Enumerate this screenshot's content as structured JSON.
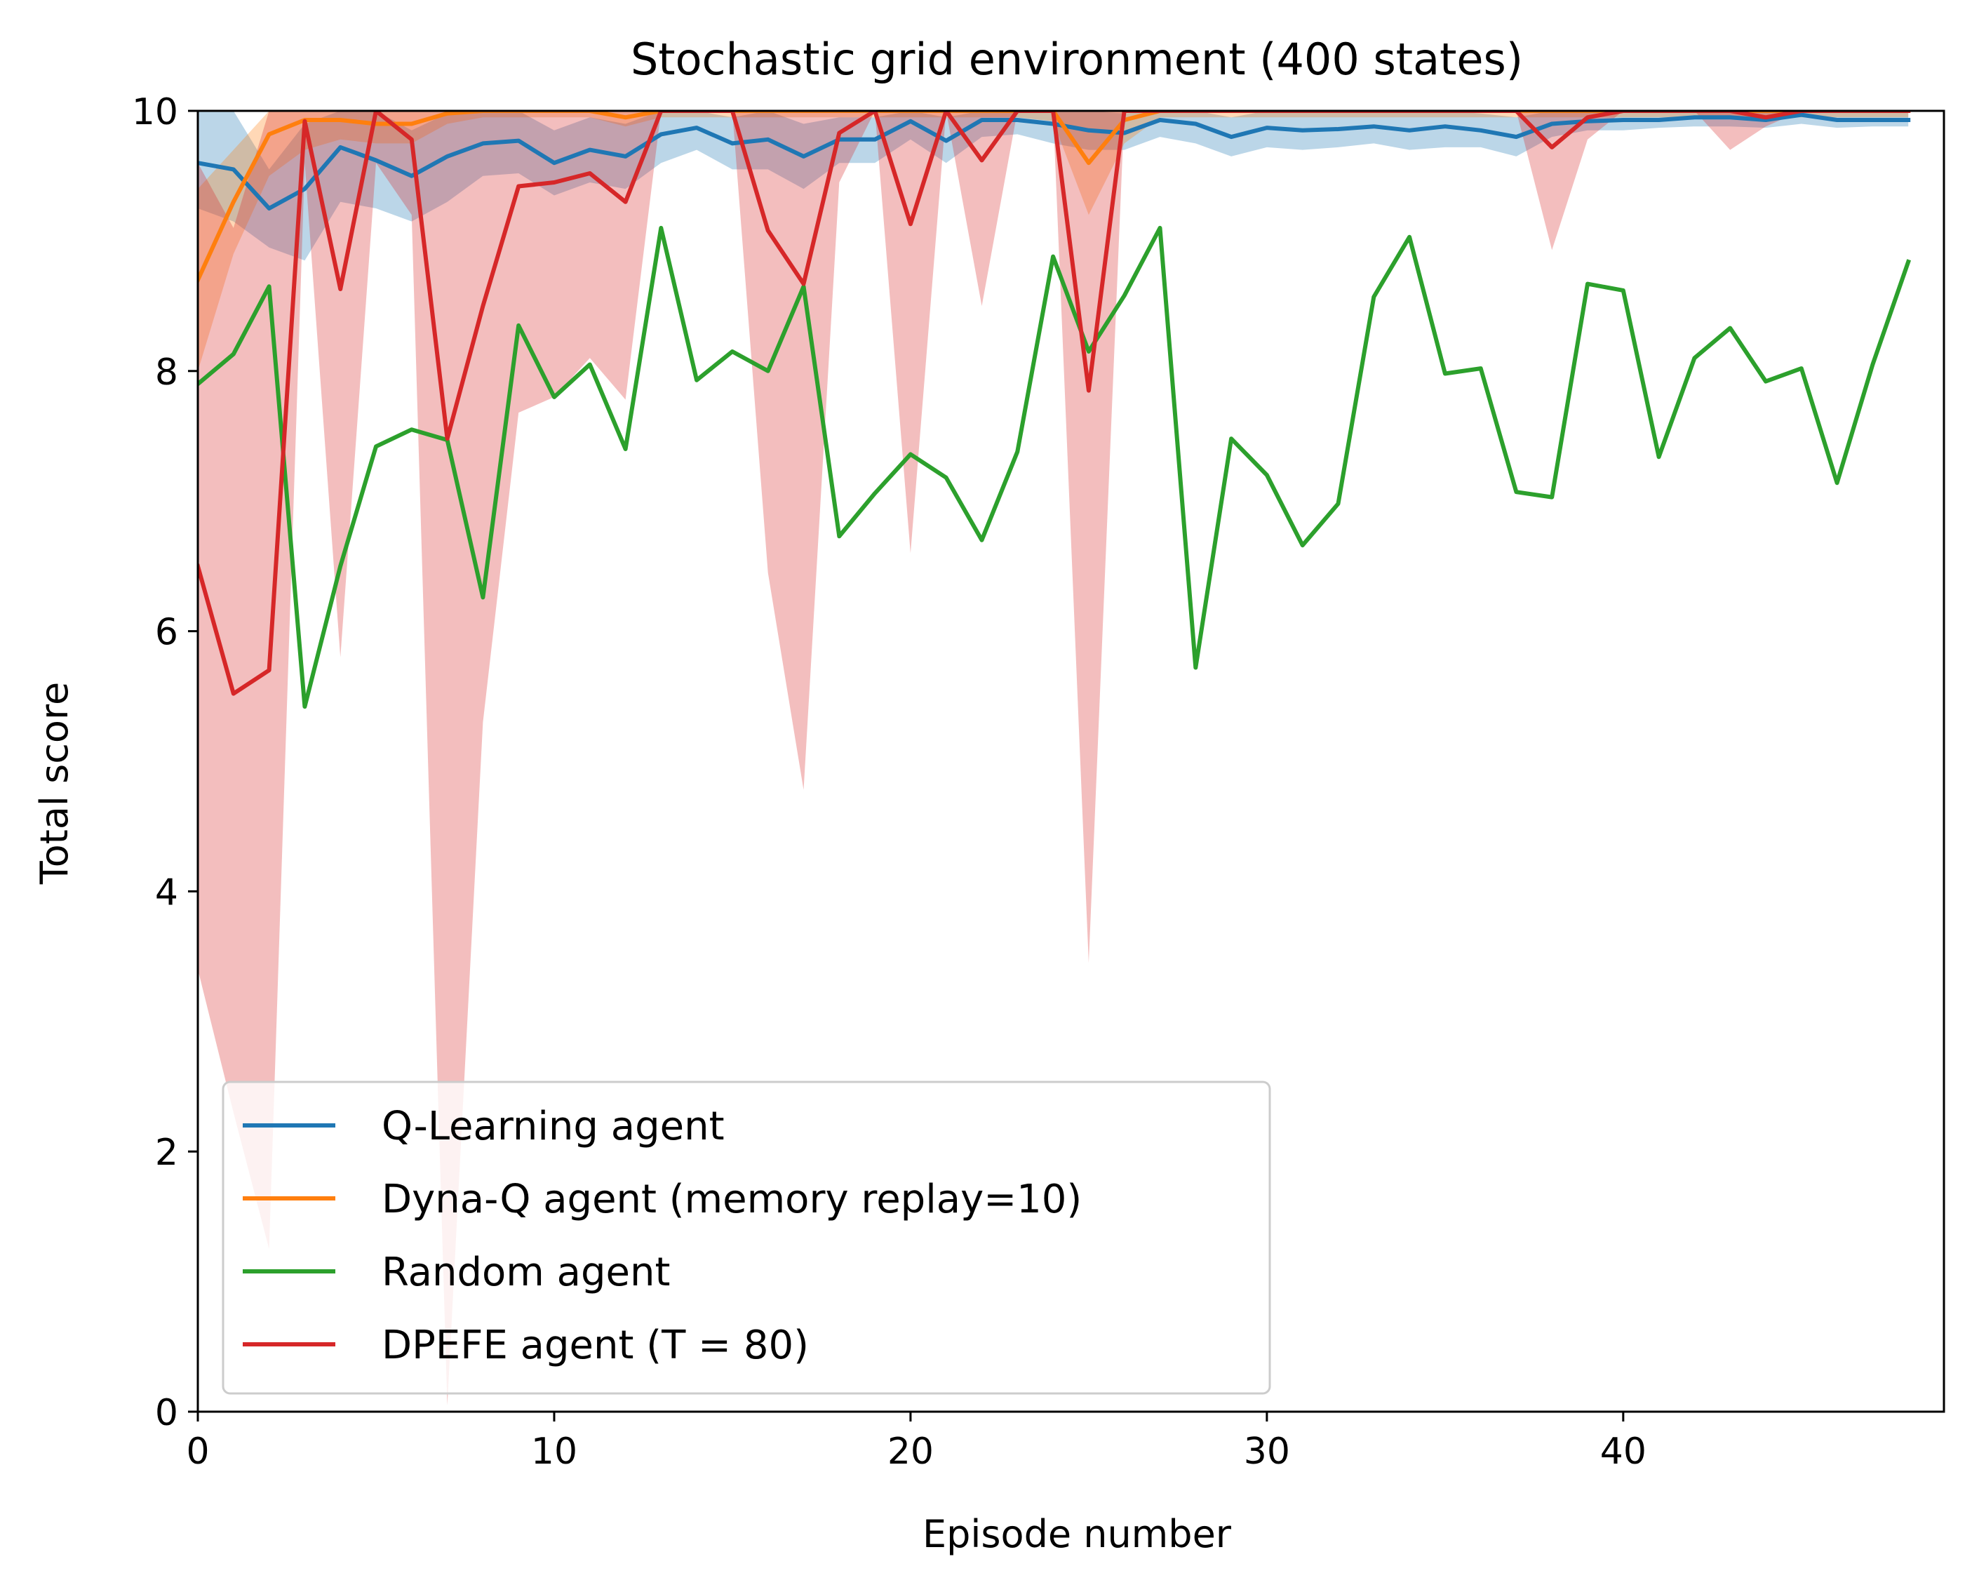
{
  "chart_data": {
    "type": "line",
    "title": "Stochastic grid environment (400 states)",
    "xlabel": "Episode number",
    "ylabel": "Total score",
    "xlim": [
      0,
      49
    ],
    "ylim": [
      0,
      10
    ],
    "xticks": [
      0,
      10,
      20,
      30,
      40
    ],
    "yticks": [
      0,
      2,
      4,
      6,
      8,
      10
    ],
    "grid": false,
    "legend_position": "bottom-left",
    "series": [
      {
        "name": "Q-Learning agent",
        "color": "#1f77b4",
        "values": [
          9.6,
          9.55,
          9.25,
          9.4,
          9.72,
          9.62,
          9.5,
          9.65,
          9.75,
          9.77,
          9.6,
          9.7,
          9.65,
          9.82,
          9.87,
          9.75,
          9.78,
          9.65,
          9.78,
          9.78,
          9.92,
          9.77,
          9.93,
          9.93,
          9.9,
          9.85,
          9.83,
          9.93,
          9.9,
          9.8,
          9.87,
          9.85,
          9.86,
          9.88,
          9.85,
          9.88,
          9.85,
          9.8,
          9.9,
          9.92,
          9.93,
          9.93,
          9.95,
          9.95,
          9.93,
          9.97,
          9.93,
          9.93,
          9.93
        ],
        "lower": [
          9.25,
          9.15,
          8.95,
          8.85,
          9.3,
          9.25,
          9.15,
          9.3,
          9.5,
          9.52,
          9.35,
          9.45,
          9.4,
          9.6,
          9.7,
          9.55,
          9.55,
          9.4,
          9.6,
          9.6,
          9.78,
          9.6,
          9.8,
          9.82,
          9.75,
          9.7,
          9.7,
          9.8,
          9.75,
          9.65,
          9.72,
          9.7,
          9.72,
          9.75,
          9.7,
          9.72,
          9.72,
          9.65,
          9.8,
          9.85,
          9.85,
          9.87,
          9.88,
          9.88,
          9.87,
          9.9,
          9.87,
          9.88,
          9.88
        ],
        "upper": [
          10,
          10,
          9.55,
          9.9,
          10,
          10,
          9.85,
          9.98,
          10,
          10,
          9.85,
          9.95,
          9.9,
          10,
          10,
          9.95,
          10,
          9.9,
          9.95,
          9.95,
          10,
          9.95,
          10,
          10,
          10,
          10,
          9.98,
          10,
          10,
          9.95,
          10,
          10,
          10,
          10,
          10,
          10,
          9.98,
          9.95,
          10,
          10,
          10,
          10,
          10,
          10,
          10,
          10,
          10,
          10,
          10
        ]
      },
      {
        "name": "Dyna-Q agent (memory replay=10)",
        "color": "#ff7f0e",
        "values": [
          8.7,
          9.3,
          9.82,
          9.93,
          9.93,
          9.9,
          9.9,
          9.98,
          10,
          10,
          10,
          10,
          9.95,
          10,
          10,
          10,
          10,
          10,
          10,
          10,
          10,
          10,
          10,
          10,
          10,
          9.6,
          9.93,
          10,
          10,
          10,
          10,
          10,
          10,
          10,
          10,
          10,
          10,
          10,
          10,
          10,
          10,
          10,
          10,
          10,
          10,
          10,
          10,
          10,
          10
        ],
        "lower": [
          8.0,
          8.9,
          9.5,
          9.7,
          9.78,
          9.75,
          9.75,
          9.9,
          9.95,
          9.95,
          9.95,
          9.95,
          9.88,
          9.95,
          9.95,
          9.95,
          9.95,
          9.95,
          9.95,
          9.95,
          9.95,
          9.95,
          9.95,
          9.95,
          9.92,
          9.2,
          9.75,
          9.95,
          9.95,
          9.95,
          9.95,
          9.95,
          9.95,
          9.95,
          9.95,
          9.95,
          9.95,
          9.95,
          9.95,
          9.95,
          9.95,
          9.95,
          9.95,
          9.95,
          9.95,
          9.95,
          9.95,
          9.95,
          9.95
        ],
        "upper": [
          9.4,
          9.7,
          10,
          10,
          10,
          10,
          10,
          10,
          10,
          10,
          10,
          10,
          10,
          10,
          10,
          10,
          10,
          10,
          10,
          10,
          10,
          10,
          10,
          10,
          10,
          10,
          10,
          10,
          10,
          10,
          10,
          10,
          10,
          10,
          10,
          10,
          10,
          10,
          10,
          10,
          10,
          10,
          10,
          10,
          10,
          10,
          10,
          10,
          10
        ]
      },
      {
        "name": "Random agent",
        "color": "#2ca02c",
        "values": [
          7.9,
          8.13,
          8.65,
          5.42,
          6.5,
          7.42,
          7.55,
          7.47,
          6.26,
          8.35,
          7.8,
          8.05,
          7.4,
          9.1,
          7.93,
          8.15,
          8.0,
          8.65,
          6.73,
          7.06,
          7.36,
          7.18,
          6.7,
          7.38,
          8.88,
          8.15,
          8.58,
          9.1,
          5.72,
          7.48,
          7.2,
          6.66,
          6.98,
          8.57,
          9.03,
          7.98,
          8.02,
          7.07,
          7.03,
          8.67,
          8.62,
          7.34,
          8.1,
          8.33,
          7.92,
          8.02,
          7.14,
          8.05,
          8.84
        ]
      },
      {
        "name": "DPEFE agent (T = 80)",
        "color": "#d62728",
        "values": [
          6.5,
          5.52,
          5.7,
          9.92,
          8.63,
          10,
          9.78,
          7.48,
          8.5,
          9.42,
          9.45,
          9.52,
          9.3,
          10,
          10,
          10,
          9.08,
          8.67,
          9.83,
          10,
          9.13,
          10,
          9.62,
          10,
          10,
          7.85,
          10,
          10,
          10,
          10,
          10,
          10,
          10,
          10,
          10,
          10,
          10,
          10,
          9.72,
          9.95,
          10,
          10,
          10,
          10,
          9.95,
          10,
          10,
          10,
          10
        ],
        "lower": [
          3.4,
          2.3,
          1.25,
          9.6,
          5.8,
          9.6,
          9.2,
          0.05,
          5.3,
          7.68,
          7.8,
          8.1,
          7.78,
          10,
          10,
          10,
          6.45,
          4.78,
          9.45,
          10,
          6.6,
          10,
          8.5,
          10,
          10,
          3.45,
          10,
          10,
          10,
          10,
          10,
          10,
          10,
          10,
          10,
          10,
          10,
          10,
          8.93,
          9.78,
          10,
          10,
          10,
          9.7,
          9.88,
          10,
          10,
          10,
          10
        ],
        "upper": [
          9.6,
          9.1,
          10,
          10,
          10,
          10,
          10,
          10,
          10,
          10,
          10,
          10,
          10,
          10,
          10,
          10,
          10,
          10,
          10,
          10,
          10,
          10,
          10,
          10,
          10,
          10,
          10,
          10,
          10,
          10,
          10,
          10,
          10,
          10,
          10,
          10,
          10,
          10,
          10,
          10,
          10,
          10,
          10,
          10,
          10,
          10,
          10,
          10,
          10
        ]
      }
    ]
  }
}
